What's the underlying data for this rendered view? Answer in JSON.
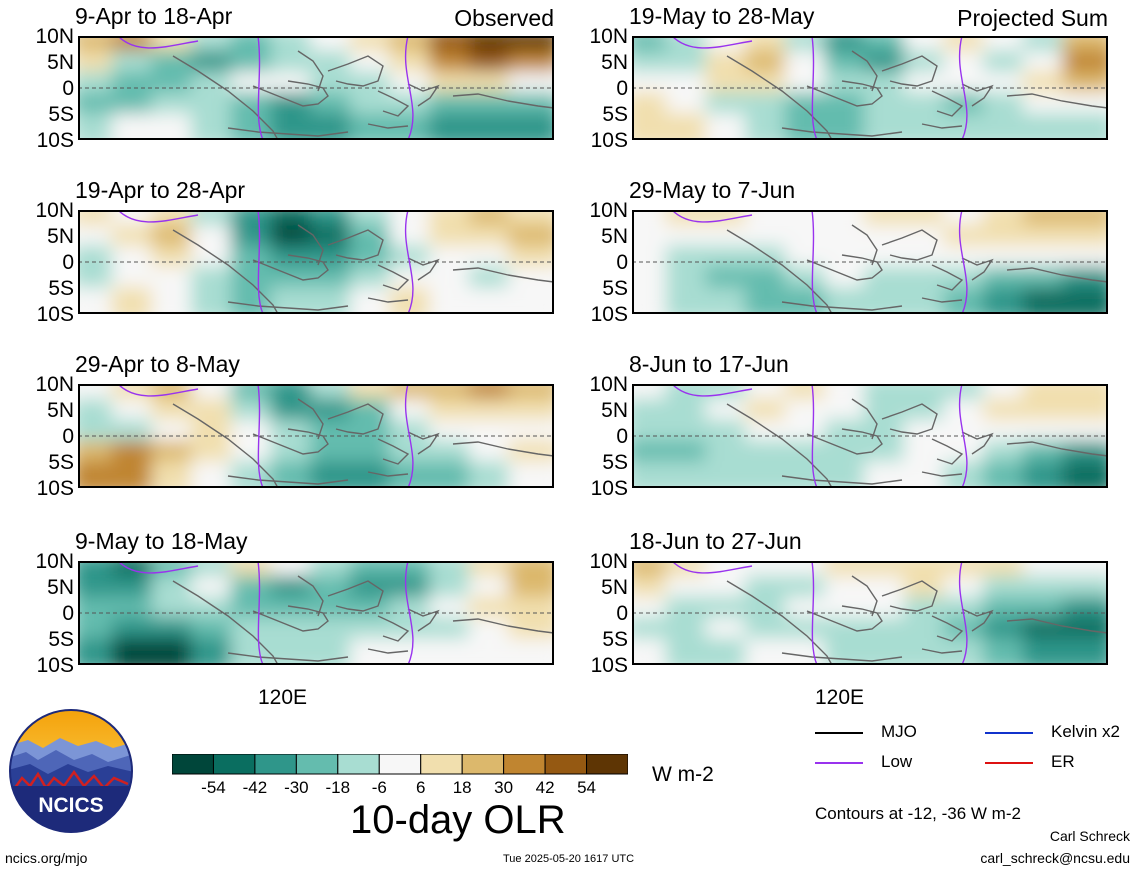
{
  "chart_data": {
    "type": "heatmap",
    "title": "10-day OLR",
    "units": "W m-2",
    "contour_note": "Contours at -12, -36 W m-2",
    "x_tick_labels": [
      "120E"
    ],
    "y_tick_labels": [
      "10N",
      "5N",
      "0",
      "5S",
      "10S"
    ],
    "colorbar": {
      "tick_labels": [
        "-54",
        "-42",
        "-30",
        "-18",
        "-6",
        "6",
        "18",
        "30",
        "42",
        "54"
      ],
      "colors": [
        "#00463a",
        "#0a6e60",
        "#2f968a",
        "#64bcae",
        "#a8ddd2",
        "#f7f7f7",
        "#f1dfae",
        "#dcb86c",
        "#c08530",
        "#955912",
        "#5e3504"
      ]
    },
    "legend": [
      {
        "label": "MJO",
        "color": "#000000"
      },
      {
        "label": "Kelvin x2",
        "color": "#1133cc"
      },
      {
        "label": "Low",
        "color": "#9933ee"
      },
      {
        "label": "ER",
        "color": "#dd1111"
      }
    ],
    "panels": [
      {
        "period": "9-Apr to 18-Apr",
        "label": "Observed",
        "field": [
          [
            2,
            3,
            1,
            -1,
            -2,
            -1,
            0,
            1,
            2,
            4,
            5,
            5
          ],
          [
            1,
            -1,
            -2,
            -3,
            -2,
            -1,
            -1,
            0,
            1,
            3,
            4,
            3
          ],
          [
            -1,
            -2,
            -2,
            -1,
            0,
            0,
            -1,
            -1,
            0,
            1,
            1,
            0
          ],
          [
            -2,
            -2,
            -1,
            -1,
            -2,
            -3,
            -2,
            -1,
            -1,
            -2,
            -2,
            -2
          ],
          [
            -1,
            0,
            0,
            -1,
            -2,
            -3,
            -3,
            -2,
            -2,
            -3,
            -3,
            -3
          ]
        ]
      },
      {
        "period": "19-May to 28-May",
        "label": "Projected Sum",
        "field": [
          [
            -2,
            -1,
            0,
            1,
            -1,
            -3,
            -2,
            0,
            1,
            0,
            -1,
            2
          ],
          [
            -1,
            -1,
            1,
            2,
            0,
            -2,
            -3,
            -1,
            0,
            -1,
            0,
            3
          ],
          [
            0,
            0,
            1,
            1,
            0,
            -1,
            -1,
            0,
            0,
            0,
            1,
            2
          ],
          [
            1,
            0,
            -1,
            -1,
            -2,
            -2,
            -1,
            -1,
            -2,
            -1,
            0,
            0
          ],
          [
            1,
            1,
            0,
            -1,
            -2,
            -2,
            -1,
            -1,
            -1,
            -1,
            -1,
            -1
          ]
        ]
      },
      {
        "period": "19-Apr to 28-Apr",
        "label": "",
        "field": [
          [
            1,
            0,
            1,
            -1,
            -3,
            -4,
            -3,
            -1,
            0,
            1,
            2,
            1
          ],
          [
            0,
            1,
            2,
            0,
            -3,
            -5,
            -4,
            -2,
            0,
            1,
            1,
            2
          ],
          [
            -1,
            0,
            1,
            0,
            -2,
            -3,
            -3,
            -2,
            -1,
            0,
            0,
            1
          ],
          [
            -1,
            0,
            0,
            -1,
            -2,
            -2,
            -2,
            -1,
            0,
            0,
            -1,
            0
          ],
          [
            0,
            1,
            0,
            -1,
            -2,
            -1,
            -1,
            0,
            1,
            0,
            0,
            0
          ]
        ]
      },
      {
        "period": "29-May to 7-Jun",
        "label": "",
        "field": [
          [
            0,
            1,
            1,
            0,
            0,
            0,
            1,
            1,
            0,
            1,
            2,
            2
          ],
          [
            0,
            0,
            0,
            0,
            0,
            0,
            0,
            0,
            1,
            1,
            1,
            1
          ],
          [
            0,
            -1,
            -1,
            -1,
            0,
            0,
            0,
            0,
            0,
            0,
            0,
            0
          ],
          [
            0,
            -1,
            -2,
            -2,
            -1,
            0,
            -1,
            -1,
            -1,
            -2,
            -2,
            -3
          ],
          [
            0,
            -1,
            -1,
            -2,
            -2,
            -1,
            -1,
            -1,
            -2,
            -3,
            -4,
            -4
          ]
        ]
      },
      {
        "period": "29-Apr to 8-May",
        "label": "",
        "field": [
          [
            0,
            1,
            2,
            0,
            -2,
            -3,
            -1,
            1,
            2,
            2,
            3,
            2
          ],
          [
            -1,
            0,
            1,
            1,
            -1,
            -3,
            -3,
            -2,
            0,
            1,
            1,
            1
          ],
          [
            -1,
            -1,
            0,
            1,
            0,
            -1,
            -2,
            -2,
            -1,
            0,
            0,
            0
          ],
          [
            2,
            3,
            2,
            1,
            0,
            -1,
            -2,
            -2,
            -1,
            -1,
            0,
            1
          ],
          [
            3,
            3,
            1,
            0,
            -1,
            -2,
            -3,
            -3,
            -2,
            -2,
            -1,
            0
          ]
        ]
      },
      {
        "period": "8-Jun to 17-Jun",
        "label": "",
        "field": [
          [
            0,
            -1,
            -1,
            0,
            1,
            0,
            -1,
            -1,
            -1,
            0,
            1,
            1
          ],
          [
            -1,
            -1,
            0,
            1,
            0,
            0,
            -1,
            -1,
            0,
            1,
            1,
            1
          ],
          [
            -1,
            -1,
            -1,
            0,
            0,
            -1,
            -1,
            0,
            0,
            0,
            0,
            0
          ],
          [
            -2,
            -2,
            -1,
            -1,
            -1,
            -1,
            -1,
            0,
            0,
            -1,
            -2,
            -3
          ],
          [
            -1,
            -1,
            -1,
            -1,
            -1,
            -1,
            0,
            0,
            -1,
            -2,
            -3,
            -4
          ]
        ]
      },
      {
        "period": "9-May to 18-May",
        "label": "",
        "field": [
          [
            -3,
            -4,
            -2,
            -1,
            1,
            0,
            -1,
            -2,
            -2,
            -1,
            1,
            2
          ],
          [
            -3,
            -3,
            -1,
            0,
            -2,
            -3,
            -2,
            -3,
            -3,
            -1,
            0,
            2
          ],
          [
            -2,
            -2,
            -1,
            -1,
            -2,
            -2,
            -2,
            -2,
            -1,
            0,
            1,
            1
          ],
          [
            -2,
            -3,
            -3,
            -2,
            -1,
            -1,
            -1,
            -1,
            -1,
            -1,
            0,
            1
          ],
          [
            -3,
            -5,
            -5,
            -3,
            -1,
            -1,
            -1,
            0,
            0,
            0,
            0,
            0
          ]
        ]
      },
      {
        "period": "18-Jun to 27-Jun",
        "label": "",
        "field": [
          [
            2,
            1,
            0,
            0,
            0,
            1,
            1,
            1,
            1,
            1,
            0,
            0
          ],
          [
            1,
            0,
            0,
            -1,
            -1,
            0,
            0,
            1,
            0,
            -1,
            -1,
            -1
          ],
          [
            0,
            -1,
            -1,
            -1,
            0,
            0,
            0,
            -1,
            -1,
            -2,
            -2,
            -3
          ],
          [
            -1,
            -1,
            0,
            -1,
            -1,
            -1,
            -1,
            -1,
            -2,
            -3,
            -4,
            -4
          ],
          [
            0,
            -1,
            -1,
            0,
            0,
            -1,
            -1,
            -1,
            -1,
            -2,
            -3,
            -3
          ]
        ]
      }
    ]
  },
  "logo": {
    "text": "NCICS"
  },
  "footer": {
    "url": "ncics.org/mjo",
    "timestamp": "Tue 2025-05-20 1617 UTC",
    "author": "Carl Schreck",
    "email": "carl_schreck@ncsu.edu"
  }
}
